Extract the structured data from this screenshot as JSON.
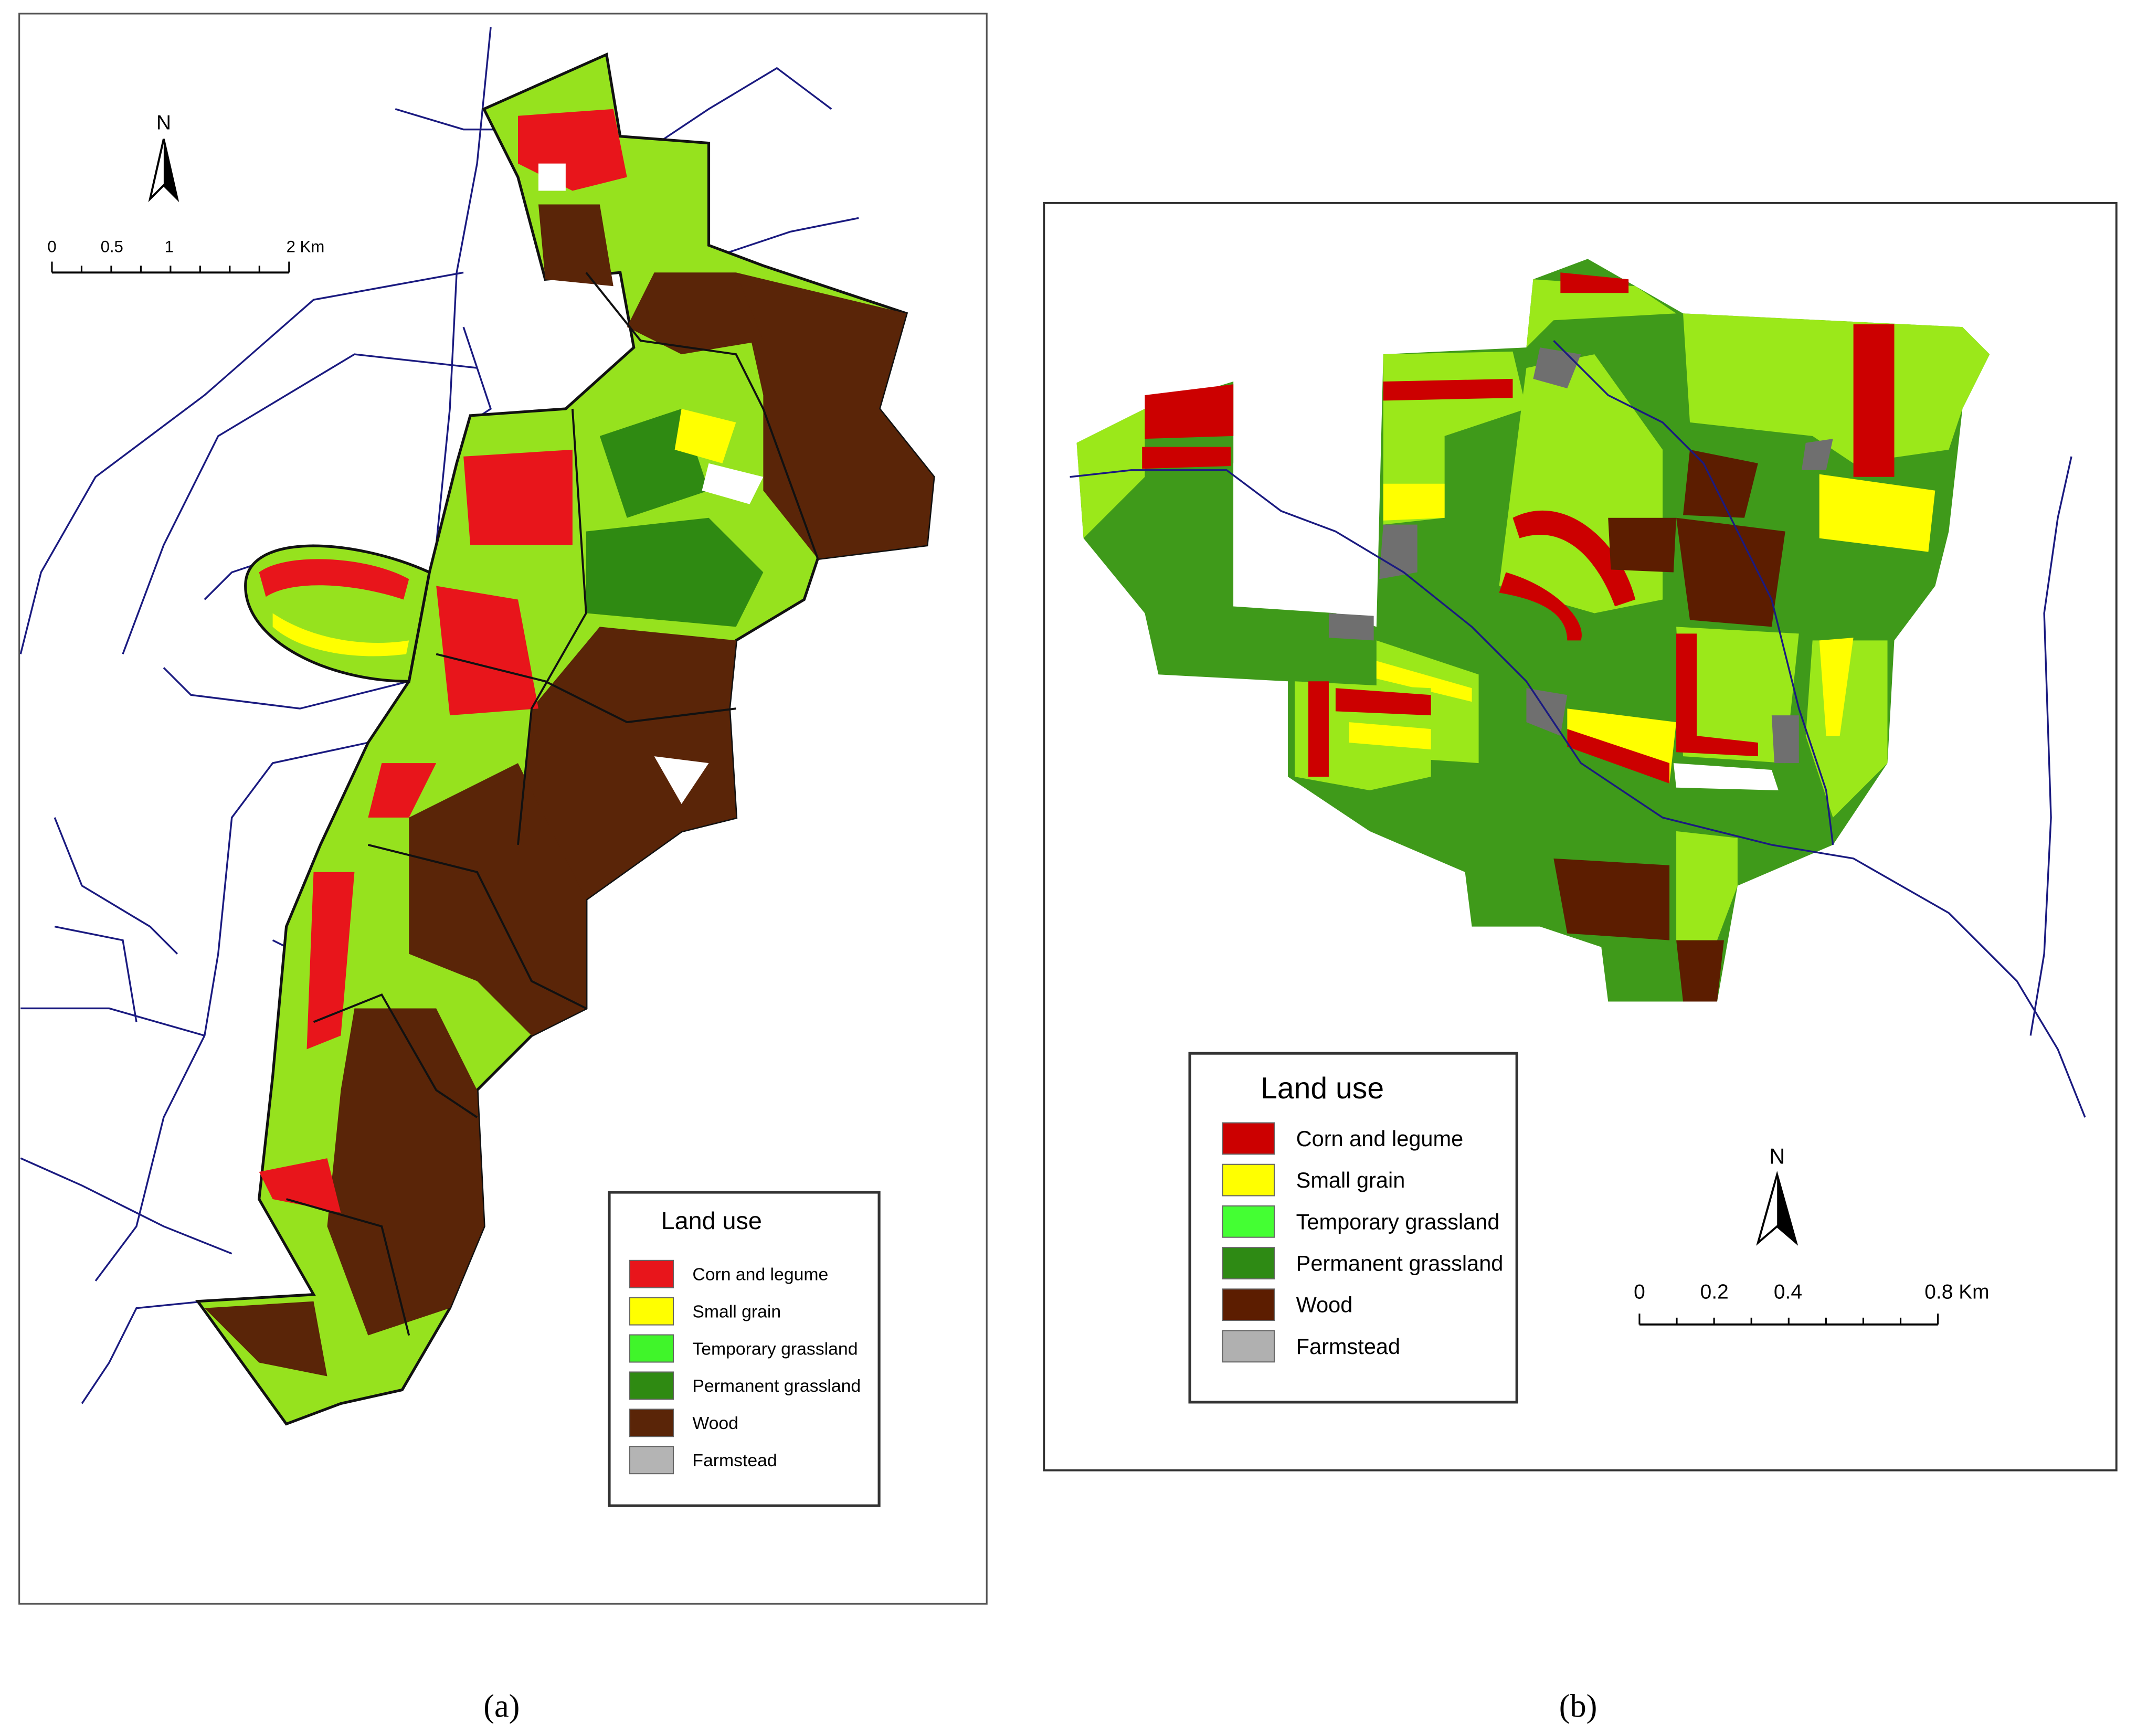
{
  "panels": [
    {
      "caption": "(a)",
      "north": "N",
      "scale_bar": [
        "0",
        "0.5",
        "1",
        "2 Km"
      ],
      "legend": {
        "title": "Land use",
        "items": [
          {
            "label": "Corn and legume",
            "color": "#e8151b"
          },
          {
            "label": "Small grain",
            "color": "#ffff00"
          },
          {
            "label": "Temporary grassland",
            "color": "#40f52a"
          },
          {
            "label": "Permanent grassland",
            "color": "#2f8a12"
          },
          {
            "label": "Wood",
            "color": "#5a2508"
          },
          {
            "label": "Farmstead",
            "color": "#b4b4b4"
          }
        ]
      }
    },
    {
      "caption": "(b)",
      "north": "N",
      "scale_bar": [
        "0",
        "0.2",
        "0.4",
        "0.8 Km"
      ],
      "legend": {
        "title": "Land use",
        "items": [
          {
            "label": "Corn and legume",
            "color": "#cc0000"
          },
          {
            "label": "Small grain",
            "color": "#ffff00"
          },
          {
            "label": "Temporary grassland",
            "color": "#44ff33"
          },
          {
            "label": "Permanent grassland",
            "color": "#2e8a14"
          },
          {
            "label": "Wood",
            "color": "#5c1d00"
          },
          {
            "label": "Farmstead",
            "color": "#b0b0b0"
          }
        ]
      }
    }
  ]
}
